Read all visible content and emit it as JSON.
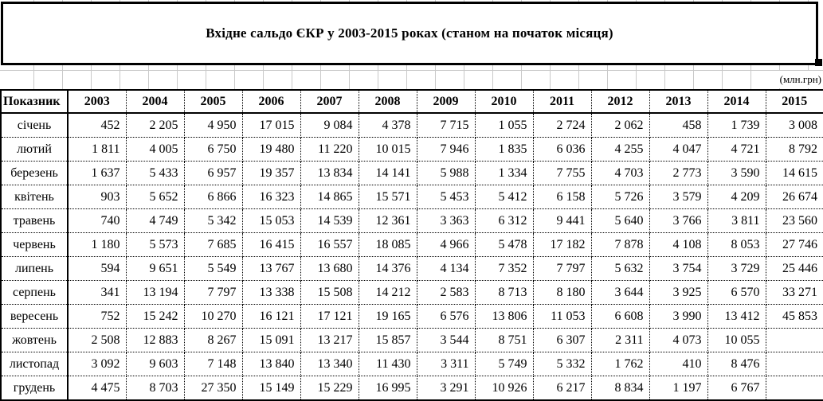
{
  "title": "Вхідне сальдо ЄКР у 2003-2015 роках (станом на початок місяця)",
  "units_label": "(млн.грн)",
  "colors": {
    "gridline": "#c9c9c9",
    "border": "#000000",
    "background": "#ffffff"
  },
  "table": {
    "indicator_header": "Показник",
    "years": [
      "2003",
      "2004",
      "2005",
      "2006",
      "2007",
      "2008",
      "2009",
      "2010",
      "2011",
      "2012",
      "2013",
      "2014",
      "2015"
    ],
    "rows": [
      {
        "month": "січень",
        "values": [
          "452",
          "2 205",
          "4 950",
          "17 015",
          "9 084",
          "4 378",
          "7 715",
          "1 055",
          "2 724",
          "2 062",
          "458",
          "1 739",
          "3 008"
        ]
      },
      {
        "month": "лютий",
        "values": [
          "1 811",
          "4 005",
          "6 750",
          "19 480",
          "11 220",
          "10 015",
          "7 946",
          "1 835",
          "6 036",
          "4 255",
          "4 047",
          "4 721",
          "8 792"
        ]
      },
      {
        "month": "березень",
        "values": [
          "1 637",
          "5 433",
          "6 957",
          "19 357",
          "13 834",
          "14 141",
          "5 988",
          "1 334",
          "7 755",
          "4 703",
          "2 773",
          "3 590",
          "14 615"
        ]
      },
      {
        "month": "квітень",
        "values": [
          "903",
          "5 652",
          "6 866",
          "16 323",
          "14 865",
          "15 571",
          "5 453",
          "5 412",
          "6 158",
          "5 726",
          "3 579",
          "4 209",
          "26 674"
        ]
      },
      {
        "month": "травень",
        "values": [
          "740",
          "4 749",
          "5 342",
          "15 053",
          "14 539",
          "12 361",
          "3 363",
          "6 312",
          "9 441",
          "5 640",
          "3 766",
          "3 811",
          "23 560"
        ]
      },
      {
        "month": "червень",
        "values": [
          "1 180",
          "5 573",
          "7 685",
          "16 415",
          "16 557",
          "18 085",
          "4 966",
          "5 478",
          "17 182",
          "7 878",
          "4 108",
          "8 053",
          "27 746"
        ]
      },
      {
        "month": "липень",
        "values": [
          "594",
          "9 651",
          "5 549",
          "13 767",
          "13 680",
          "14 376",
          "4 134",
          "7 352",
          "7 797",
          "5 632",
          "3 754",
          "3 729",
          "25 446"
        ]
      },
      {
        "month": "серпень",
        "values": [
          "341",
          "13 194",
          "7 797",
          "13 338",
          "15 508",
          "14 212",
          "2 583",
          "8 713",
          "8 180",
          "3 644",
          "3 925",
          "6 570",
          "33 271"
        ]
      },
      {
        "month": "вересень",
        "values": [
          "752",
          "15 242",
          "10 270",
          "16 121",
          "17 121",
          "19 165",
          "6 576",
          "13 806",
          "11 053",
          "6 608",
          "3 990",
          "13 412",
          "45 853"
        ]
      },
      {
        "month": "жовтень",
        "values": [
          "2 508",
          "12 883",
          "8 267",
          "15 091",
          "13 217",
          "15 857",
          "3 544",
          "8 751",
          "6 307",
          "2 311",
          "4 073",
          "10 055",
          ""
        ]
      },
      {
        "month": "листопад",
        "values": [
          "3 092",
          "9 603",
          "7 148",
          "13 840",
          "13 340",
          "11 430",
          "3 311",
          "5 749",
          "5 332",
          "1 762",
          "410",
          "8 476",
          ""
        ]
      },
      {
        "month": "грудень",
        "values": [
          "4 475",
          "8 703",
          "27 350",
          "15 149",
          "15 229",
          "16 995",
          "3 291",
          "10 926",
          "6 217",
          "8 834",
          "1 197",
          "6 767",
          ""
        ]
      }
    ]
  }
}
